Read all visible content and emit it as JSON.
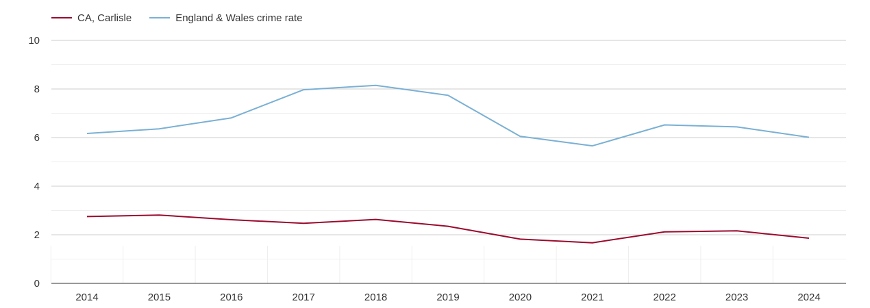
{
  "chart_data": {
    "type": "line",
    "title": "",
    "xlabel": "",
    "ylabel": "",
    "categories": [
      "2014",
      "2015",
      "2016",
      "2017",
      "2018",
      "2019",
      "2020",
      "2021",
      "2022",
      "2023",
      "2024"
    ],
    "ylim": [
      0,
      10
    ],
    "yticks": [
      0,
      2,
      4,
      6,
      8,
      10
    ],
    "grid": true,
    "legend_position": "top-left",
    "series": [
      {
        "name": "CA, Carlisle",
        "color": "#9b0a2e",
        "values": [
          2.75,
          2.81,
          2.62,
          2.47,
          2.63,
          2.35,
          1.82,
          1.67,
          2.12,
          2.16,
          1.86
        ]
      },
      {
        "name": "England & Wales crime rate",
        "color": "#7ab0d4",
        "values": [
          6.17,
          6.36,
          6.81,
          7.97,
          8.15,
          7.74,
          6.05,
          5.66,
          6.52,
          6.44,
          6.01
        ]
      }
    ]
  }
}
